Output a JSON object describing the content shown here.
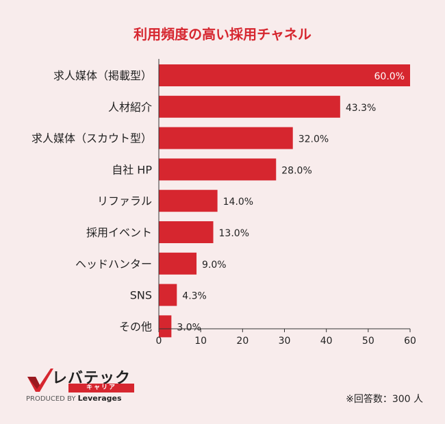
{
  "chart_data": {
    "type": "bar",
    "orientation": "horizontal",
    "title": "利用頻度の高い採用チャネル",
    "categories": [
      "求人媒体（掲載型）",
      "人材紹介",
      "求人媒体（スカウト型）",
      "自社 HP",
      "リファラル",
      "採用イベント",
      "ヘッドハンター",
      "SNS",
      "その他"
    ],
    "values": [
      60.0,
      43.3,
      32.0,
      28.0,
      14.0,
      13.0,
      9.0,
      4.3,
      3.0
    ],
    "value_labels": [
      "60.0%",
      "43.3%",
      "32.0%",
      "28.0%",
      "14.0%",
      "13.0%",
      "9.0%",
      "4.3%",
      "3.0%"
    ],
    "xlim": [
      0,
      60
    ],
    "xticks": [
      0,
      10,
      20,
      30,
      40,
      50,
      60
    ],
    "bar_color": "#d6262f",
    "grid": false
  },
  "logo": {
    "main": "レバテック",
    "sub": "キャリア",
    "produced_by": "PRODUCED BY",
    "brand": "Leverages"
  },
  "note": "※回答数：300 人",
  "colors": {
    "accent": "#d6262f",
    "background": "#f8ecec"
  }
}
